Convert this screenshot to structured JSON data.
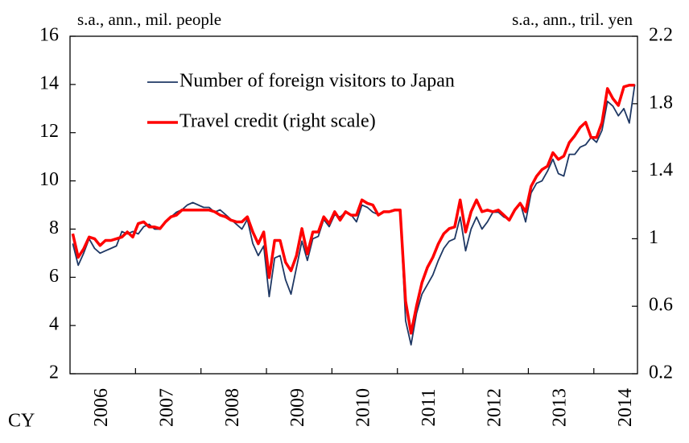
{
  "chart_data": {
    "type": "line",
    "left_unit": "s.a., ann., mil. people",
    "right_unit": "s.a., ann., tril. yen",
    "x_label": "CY",
    "categories": [
      null,
      null,
      null,
      null,
      null,
      null,
      "2006",
      null,
      null,
      null,
      null,
      null,
      null,
      null,
      null,
      null,
      null,
      null,
      "2007",
      null,
      null,
      null,
      null,
      null,
      null,
      null,
      null,
      null,
      null,
      null,
      "2008",
      null,
      null,
      null,
      null,
      null,
      null,
      null,
      null,
      null,
      null,
      null,
      "2009",
      null,
      null,
      null,
      null,
      null,
      null,
      null,
      null,
      null,
      null,
      null,
      "2010",
      null,
      null,
      null,
      null,
      null,
      null,
      null,
      null,
      null,
      null,
      null,
      "2011",
      null,
      null,
      null,
      null,
      null,
      null,
      null,
      null,
      null,
      null,
      null,
      "2012",
      null,
      null,
      null,
      null,
      null,
      null,
      null,
      null,
      null,
      null,
      null,
      "2013",
      null,
      null,
      null,
      null,
      null,
      null,
      null,
      null,
      null,
      null,
      null,
      "2014",
      null
    ],
    "series": [
      {
        "name": "Number of foreign visitors to Japan",
        "color": "#1f3864",
        "axis": "y",
        "values": [
          7.4,
          6.5,
          7.0,
          7.6,
          7.2,
          7.0,
          7.1,
          7.2,
          7.3,
          7.9,
          7.8,
          7.9,
          7.8,
          8.1,
          8.2,
          8.0,
          8.0,
          8.3,
          8.5,
          8.7,
          8.8,
          9.0,
          9.1,
          9.0,
          8.9,
          8.9,
          8.7,
          8.8,
          8.6,
          8.4,
          8.2,
          8.0,
          8.4,
          7.4,
          6.9,
          7.3,
          5.2,
          6.8,
          6.9,
          5.9,
          5.3,
          6.4,
          7.5,
          6.7,
          7.6,
          7.7,
          8.4,
          8.1,
          8.6,
          8.5,
          8.7,
          8.6,
          8.3,
          9.0,
          8.9,
          8.7,
          8.6,
          8.7,
          8.7,
          8.8,
          8.8,
          4.2,
          3.2,
          4.5,
          5.3,
          5.7,
          6.1,
          6.7,
          7.2,
          7.5,
          7.6,
          8.5,
          7.1,
          8.0,
          8.5,
          8.0,
          8.3,
          8.7,
          8.7,
          8.5,
          8.4,
          8.8,
          9.1,
          8.3,
          9.5,
          9.9,
          10.0,
          10.4,
          10.9,
          10.3,
          10.2,
          11.1,
          11.1,
          11.4,
          11.5,
          11.8,
          11.6,
          12.1,
          13.3,
          13.1,
          12.7,
          13.0,
          12.4,
          14.0
        ]
      },
      {
        "name": "Travel credit (right scale)",
        "color": "#ff0000",
        "axis": "y2",
        "values": [
          1.03,
          0.89,
          0.94,
          1.01,
          1.0,
          0.96,
          0.99,
          0.99,
          1.0,
          1.01,
          1.04,
          1.01,
          1.09,
          1.1,
          1.07,
          1.07,
          1.06,
          1.1,
          1.13,
          1.14,
          1.17,
          1.17,
          1.17,
          1.17,
          1.17,
          1.17,
          1.16,
          1.14,
          1.13,
          1.11,
          1.1,
          1.1,
          1.13,
          1.04,
          0.97,
          1.04,
          0.77,
          0.99,
          0.99,
          0.86,
          0.81,
          0.9,
          1.06,
          0.91,
          1.04,
          1.04,
          1.13,
          1.09,
          1.16,
          1.11,
          1.16,
          1.14,
          1.14,
          1.23,
          1.21,
          1.2,
          1.14,
          1.16,
          1.16,
          1.17,
          1.17,
          0.63,
          0.44,
          0.6,
          0.74,
          0.83,
          0.89,
          0.97,
          1.03,
          1.06,
          1.07,
          1.23,
          1.04,
          1.16,
          1.23,
          1.16,
          1.17,
          1.16,
          1.17,
          1.14,
          1.11,
          1.17,
          1.21,
          1.16,
          1.31,
          1.37,
          1.41,
          1.43,
          1.51,
          1.47,
          1.49,
          1.57,
          1.61,
          1.66,
          1.69,
          1.6,
          1.6,
          1.69,
          1.89,
          1.83,
          1.79,
          1.9,
          1.91,
          1.91
        ]
      }
    ],
    "ylim": [
      2,
      16
    ],
    "yticks": [
      2,
      4,
      6,
      8,
      10,
      12,
      14,
      16
    ],
    "y2lim": [
      0.2,
      2.2
    ],
    "y2ticks": [
      0.2,
      0.6,
      1.0,
      1.4,
      1.8,
      2.2
    ],
    "legend": "upper left"
  }
}
